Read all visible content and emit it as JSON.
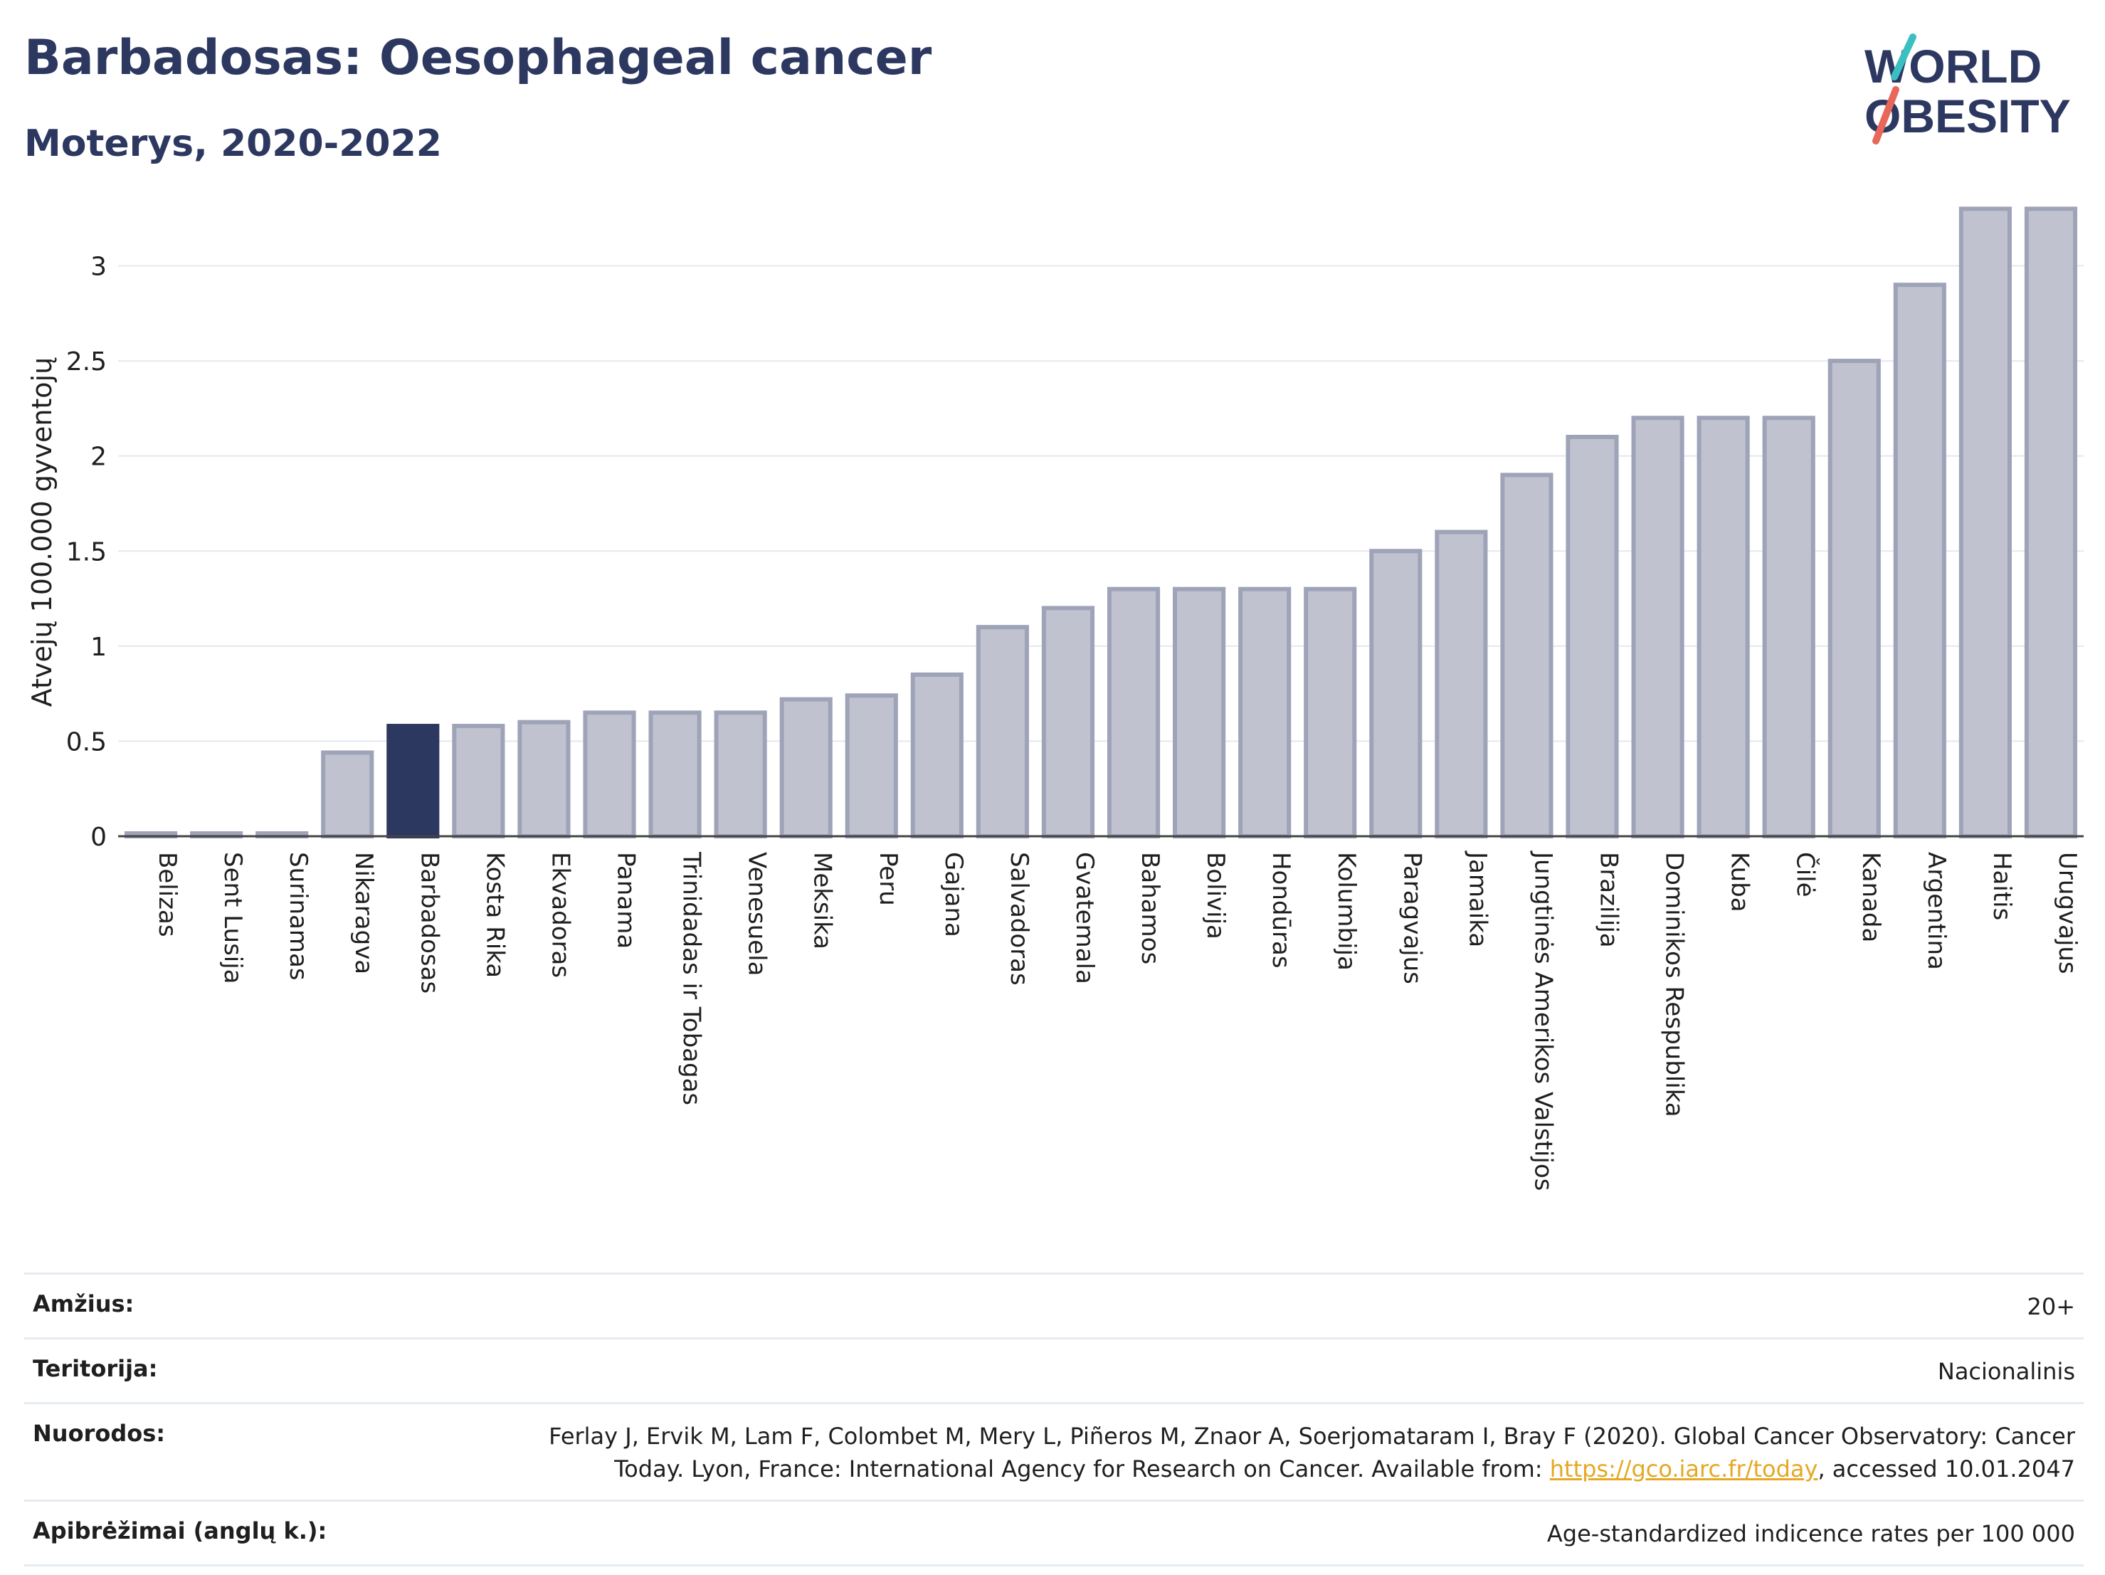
{
  "header": {
    "title": "Barbadosas: Oesophageal cancer",
    "subtitle": "Moterys, 2020-2022"
  },
  "logo": {
    "line1": "WORLD",
    "line2": "OBESITY",
    "accent_colors": [
      "#3cbfc0",
      "#e8665a"
    ],
    "text_color": "#2d3861"
  },
  "chart_data": {
    "type": "bar",
    "ylabel": "Atvejų 100.000 gyventojų",
    "ylim": [
      0,
      3.35
    ],
    "yticks": [
      0,
      0.5,
      1,
      1.5,
      2,
      2.5,
      3
    ],
    "ytick_labels": [
      "0",
      "0.5",
      "1",
      "1.5",
      "2",
      "2.5",
      "3"
    ],
    "grid": true,
    "highlight": "Barbadosas",
    "highlight_color": "#2d3861",
    "bar_color": "#c0c3cf",
    "bar_border_color": "#9ea3b8",
    "categories": [
      "Belizas",
      "Sent Lusija",
      "Surinamas",
      "Nikaragva",
      "Barbadosas",
      "Kosta Rika",
      "Ekvadoras",
      "Panama",
      "Trinidadas ir Tobagas",
      "Venesuela",
      "Meksika",
      "Peru",
      "Gajana",
      "Salvadoras",
      "Gvatemala",
      "Bahamos",
      "Bolivija",
      "Hondūras",
      "Kolumbija",
      "Paragvajus",
      "Jamaika",
      "Jungtinės Amerikos Valstijos",
      "Brazilija",
      "Dominikos Respublika",
      "Kuba",
      "Čilė",
      "Kanada",
      "Argentina",
      "Haitis",
      "Urugvajus"
    ],
    "values": [
      0.01,
      0.01,
      0.01,
      0.44,
      0.58,
      0.58,
      0.6,
      0.65,
      0.65,
      0.65,
      0.72,
      0.74,
      0.85,
      1.1,
      1.2,
      1.3,
      1.3,
      1.3,
      1.3,
      1.5,
      1.6,
      1.9,
      2.1,
      2.2,
      2.2,
      2.2,
      2.5,
      2.9,
      3.3,
      3.3
    ]
  },
  "meta": {
    "age_label": "Amžius:",
    "age_value": "20+",
    "territory_label": "Teritorija:",
    "territory_value": "Nacionalinis",
    "refs_label": "Nuorodos:",
    "refs_text_before": "Ferlay J, Ervik M, Lam F, Colombet M, Mery L, Piñeros M, Znaor A, Soerjomataram I, Bray F (2020). Global Cancer Observatory: Cancer Today. Lyon, France: International Agency for Research on Cancer. Available from: ",
    "refs_link": "https://gco.iarc.fr/today",
    "refs_text_after": ", accessed 10.01.2047",
    "defs_label": "Apibrėžimai (anglų k.):",
    "defs_value": "Age-standardized indicence rates per 100 000"
  }
}
